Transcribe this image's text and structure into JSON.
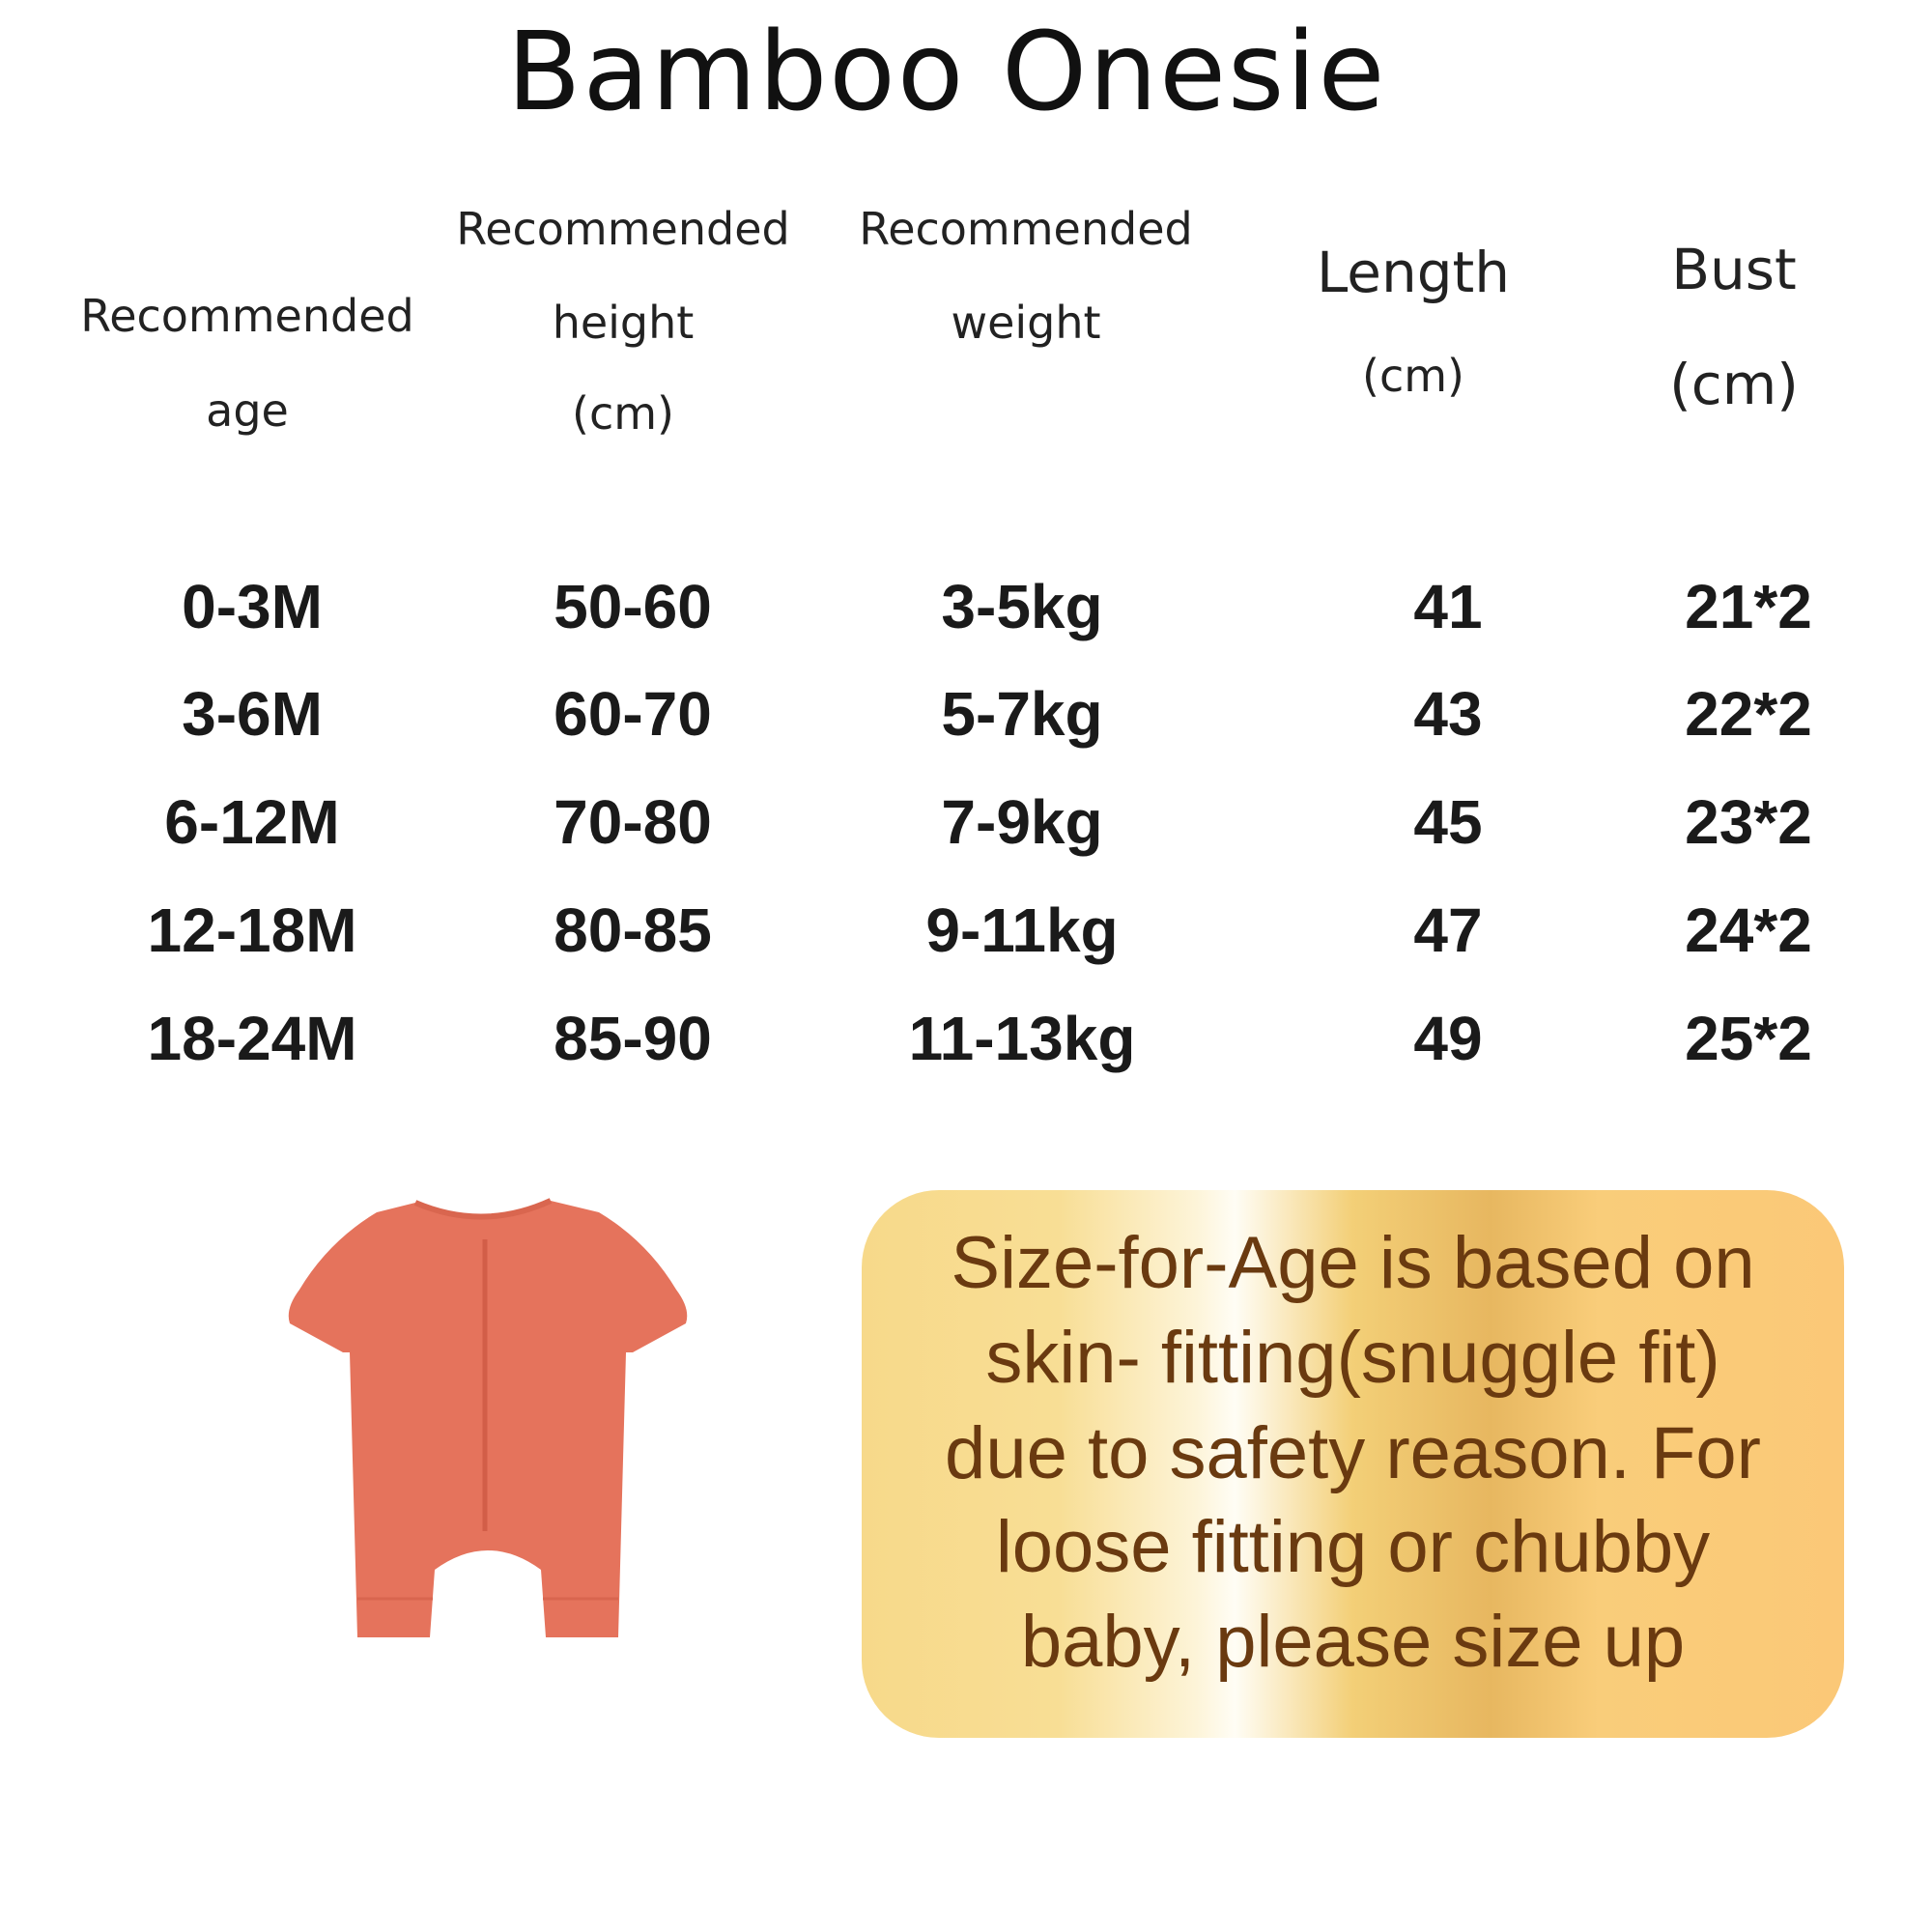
{
  "title": "Bamboo Onesie",
  "headers": [
    {
      "lines": [
        "Recommended",
        "age"
      ]
    },
    {
      "lines": [
        "Recommended",
        "height",
        "(cm)"
      ]
    },
    {
      "lines": [
        "Recommended",
        "weight"
      ]
    },
    {
      "lines": [
        "Length",
        "(cm)"
      ]
    },
    {
      "lines": [
        "Bust",
        "(cm)"
      ]
    }
  ],
  "rows": [
    [
      "0-3M",
      "50-60",
      "3-5kg",
      "41",
      "21*2"
    ],
    [
      "3-6M",
      "60-70",
      "5-7kg",
      "43",
      "22*2"
    ],
    [
      "6-12M",
      "70-80",
      "7-9kg",
      "45",
      "23*2"
    ],
    [
      "12-18M",
      "80-85",
      "9-11kg",
      "47",
      "24*2"
    ],
    [
      "18-24M",
      "85-90",
      "11-13kg",
      "49",
      "25*2"
    ]
  ],
  "note": {
    "lines": [
      "Size-for-Age is based on",
      "skin- fitting(snuggle fit)",
      "due to safety reason. For",
      "loose fitting or chubby",
      "baby, please size up"
    ],
    "text_color": "#6a3a10"
  },
  "product_image": {
    "subject": "short-sleeve zip onesie",
    "color": "#e5735c"
  }
}
